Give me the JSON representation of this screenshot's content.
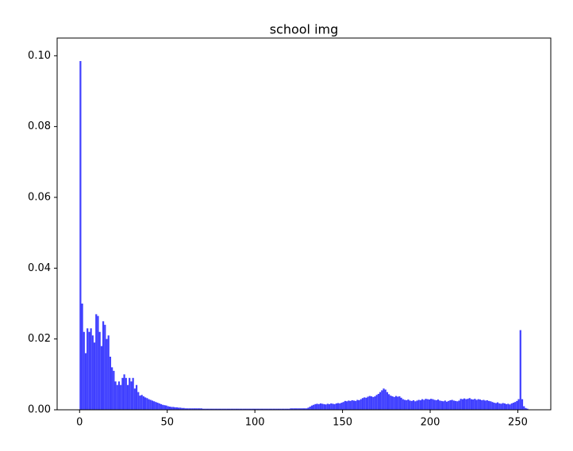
{
  "chart_data": {
    "type": "histogram",
    "title": "school img",
    "color": "#3f3fff",
    "xlim": [
      -12.8,
      268.8
    ],
    "xticks": [
      0,
      50,
      100,
      150,
      200,
      250
    ],
    "ylim": [
      0,
      0.105
    ],
    "yticks": [
      {
        "value": 0,
        "label": "0.00"
      },
      0.02,
      0.04,
      0.06,
      0.08,
      {
        "value": 0.1,
        "label": "0.10"
      }
    ],
    "bins": [
      0,
      1,
      2,
      3,
      4,
      5,
      6,
      7,
      8,
      9,
      10,
      11,
      12,
      13,
      14,
      15,
      16,
      17,
      18,
      19,
      20,
      21,
      22,
      23,
      24,
      25,
      26,
      27,
      28,
      29,
      30,
      31,
      32,
      33,
      34,
      35,
      36,
      37,
      38,
      39,
      40,
      41,
      42,
      43,
      44,
      45,
      46,
      47,
      48,
      49,
      50,
      51,
      52,
      53,
      54,
      55,
      56,
      57,
      58,
      59,
      60,
      61,
      62,
      63,
      64,
      65,
      66,
      67,
      68,
      69,
      70,
      71,
      72,
      73,
      74,
      75,
      76,
      77,
      78,
      79,
      80,
      81,
      82,
      83,
      84,
      85,
      86,
      87,
      88,
      89,
      90,
      91,
      92,
      93,
      94,
      95,
      96,
      97,
      98,
      99,
      100,
      101,
      102,
      103,
      104,
      105,
      106,
      107,
      108,
      109,
      110,
      111,
      112,
      113,
      114,
      115,
      116,
      117,
      118,
      119,
      120,
      121,
      122,
      123,
      124,
      125,
      126,
      127,
      128,
      129,
      130,
      131,
      132,
      133,
      134,
      135,
      136,
      137,
      138,
      139,
      140,
      141,
      142,
      143,
      144,
      145,
      146,
      147,
      148,
      149,
      150,
      151,
      152,
      153,
      154,
      155,
      156,
      157,
      158,
      159,
      160,
      161,
      162,
      163,
      164,
      165,
      166,
      167,
      168,
      169,
      170,
      171,
      172,
      173,
      174,
      175,
      176,
      177,
      178,
      179,
      180,
      181,
      182,
      183,
      184,
      185,
      186,
      187,
      188,
      189,
      190,
      191,
      192,
      193,
      194,
      195,
      196,
      197,
      198,
      199,
      200,
      201,
      202,
      203,
      204,
      205,
      206,
      207,
      208,
      209,
      210,
      211,
      212,
      213,
      214,
      215,
      216,
      217,
      218,
      219,
      220,
      221,
      222,
      223,
      224,
      225,
      226,
      227,
      228,
      229,
      230,
      231,
      232,
      233,
      234,
      235,
      236,
      237,
      238,
      239,
      240,
      241,
      242,
      243,
      244,
      245,
      246,
      247,
      248,
      249,
      250,
      251,
      252,
      253,
      254,
      255,
      256
    ],
    "values": [
      0.0985,
      0.03,
      0.022,
      0.016,
      0.023,
      0.022,
      0.023,
      0.021,
      0.019,
      0.027,
      0.0265,
      0.022,
      0.018,
      0.025,
      0.024,
      0.02,
      0.021,
      0.015,
      0.012,
      0.011,
      0.008,
      0.007,
      0.008,
      0.007,
      0.009,
      0.01,
      0.009,
      0.007,
      0.009,
      0.008,
      0.009,
      0.006,
      0.007,
      0.005,
      0.004,
      0.0042,
      0.0038,
      0.0035,
      0.0033,
      0.003,
      0.0028,
      0.0026,
      0.0024,
      0.0022,
      0.002,
      0.0018,
      0.0016,
      0.0014,
      0.0013,
      0.0012,
      0.001,
      0.0009,
      0.0008,
      0.0008,
      0.0007,
      0.0007,
      0.0006,
      0.0006,
      0.0005,
      0.0005,
      0.0004,
      0.0004,
      0.0004,
      0.0004,
      0.0004,
      0.0004,
      0.0004,
      0.0004,
      0.0004,
      0.0004,
      0.0003,
      0.0003,
      0.0003,
      0.0003,
      0.0003,
      0.0003,
      0.0003,
      0.0003,
      0.0003,
      0.0003,
      0.0003,
      0.0003,
      0.0003,
      0.0003,
      0.0003,
      0.0003,
      0.0003,
      0.0003,
      0.0003,
      0.0003,
      0.0003,
      0.0003,
      0.0003,
      0.0003,
      0.0003,
      0.0003,
      0.0003,
      0.0003,
      0.0003,
      0.0003,
      0.0003,
      0.0003,
      0.0003,
      0.0003,
      0.0003,
      0.0003,
      0.0003,
      0.0003,
      0.0003,
      0.0003,
      0.0003,
      0.0003,
      0.0003,
      0.0003,
      0.0003,
      0.0003,
      0.0003,
      0.0003,
      0.0003,
      0.0003,
      0.0004,
      0.0004,
      0.0004,
      0.0004,
      0.0004,
      0.0004,
      0.0004,
      0.0004,
      0.0004,
      0.0004,
      0.0006,
      0.0009,
      0.0012,
      0.0014,
      0.0016,
      0.0017,
      0.0016,
      0.0018,
      0.0017,
      0.0016,
      0.0015,
      0.0017,
      0.0016,
      0.0018,
      0.0017,
      0.0016,
      0.0018,
      0.0019,
      0.0018,
      0.002,
      0.0022,
      0.0025,
      0.0024,
      0.0026,
      0.0025,
      0.0027,
      0.0026,
      0.0025,
      0.0028,
      0.0027,
      0.003,
      0.0033,
      0.0035,
      0.0034,
      0.0037,
      0.0039,
      0.0038,
      0.0036,
      0.0038,
      0.0042,
      0.0045,
      0.005,
      0.0055,
      0.006,
      0.0057,
      0.005,
      0.0044,
      0.004,
      0.0038,
      0.0036,
      0.0039,
      0.0037,
      0.0038,
      0.0034,
      0.003,
      0.0028,
      0.0027,
      0.0029,
      0.0026,
      0.0025,
      0.0027,
      0.0024,
      0.0026,
      0.0028,
      0.0027,
      0.003,
      0.0028,
      0.0031,
      0.003,
      0.0029,
      0.0031,
      0.003,
      0.0028,
      0.0027,
      0.0029,
      0.0026,
      0.0025,
      0.0024,
      0.0026,
      0.0023,
      0.0025,
      0.0027,
      0.0028,
      0.0026,
      0.0025,
      0.0024,
      0.0026,
      0.0031,
      0.003,
      0.0032,
      0.003,
      0.0031,
      0.0033,
      0.003,
      0.0029,
      0.0031,
      0.0028,
      0.003,
      0.0029,
      0.0027,
      0.0028,
      0.0026,
      0.0027,
      0.0025,
      0.0024,
      0.0022,
      0.002,
      0.0019,
      0.0021,
      0.0018,
      0.0017,
      0.0019,
      0.0018,
      0.0016,
      0.0017,
      0.0015,
      0.0018,
      0.002,
      0.0022,
      0.0025,
      0.003,
      0.0225,
      0.003,
      0.001,
      0.0005,
      0.0003
    ]
  }
}
